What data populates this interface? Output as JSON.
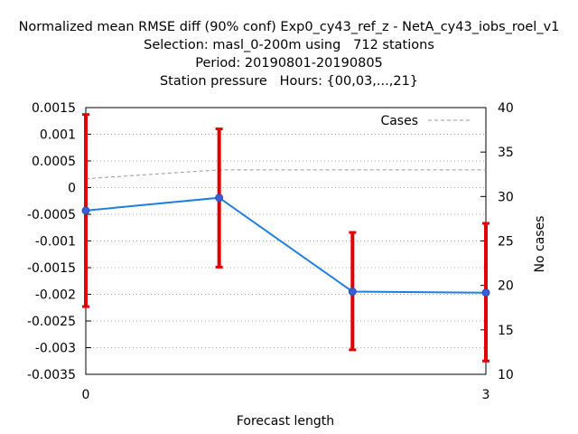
{
  "chart_data": {
    "type": "line",
    "title": [
      "Normalized mean RMSE diff (90% conf) Exp0_cy43_ref_z - NetA_cy43_iobs_roel_v1",
      "Selection: masl_0-200m using   712 stations",
      "Period: 20190801-20190805",
      "Station pressure   Hours: {00,03,...,21}"
    ],
    "xlabel": "Forecast length",
    "ylabel": "",
    "y2label": "No cases",
    "xlim": [
      0,
      3
    ],
    "ylim": [
      -0.0035,
      0.0015
    ],
    "y2lim": [
      10,
      40
    ],
    "x_ticks": [
      0,
      3
    ],
    "x_tick_labels": [
      "0",
      "3"
    ],
    "y_ticks": [
      0.0015,
      0.001,
      0.0005,
      0,
      -0.0005,
      -0.001,
      -0.0015,
      -0.002,
      -0.0025,
      -0.003,
      -0.0035
    ],
    "y_tick_labels": [
      "0.0015",
      "0.001",
      "0.0005",
      "0",
      "-0.0005",
      "-0.001",
      "-0.0015",
      "-0.002",
      "-0.0025",
      "-0.003",
      "-0.0035"
    ],
    "y2_ticks": [
      40,
      35,
      30,
      25,
      20,
      15,
      10
    ],
    "y2_tick_labels": [
      "40",
      "35",
      "30",
      "25",
      "20",
      "15",
      "10"
    ],
    "grid": true,
    "legend_position": "top-right",
    "series": [
      {
        "x": [
          0,
          1,
          2,
          3
        ],
        "values": [
          -0.00043,
          -0.00019,
          -0.00195,
          -0.00197
        ],
        "error_low": [
          -0.00223,
          -0.00149,
          -0.00304,
          -0.00325
        ],
        "error_high": [
          0.00137,
          0.0011,
          -0.00084,
          -0.00067
        ],
        "color": "#1f7fe0",
        "error_color": "#e00000"
      },
      {
        "name": "Cases",
        "axis": "y2",
        "x": [
          0,
          1,
          2,
          3
        ],
        "values": [
          32,
          33,
          33,
          33
        ],
        "color": "#999999",
        "dashed": true
      }
    ]
  }
}
